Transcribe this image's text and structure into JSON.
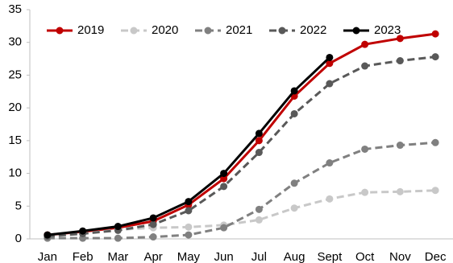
{
  "chart_data": {
    "type": "line",
    "categories": [
      "Jan",
      "Feb",
      "Mar",
      "Apr",
      "May",
      "Jun",
      "Jul",
      "Aug",
      "Sept",
      "Oct",
      "Nov",
      "Dec"
    ],
    "series": [
      {
        "name": "2019",
        "color": "#c00000",
        "dash": false,
        "values": [
          0.6,
          1.1,
          1.7,
          2.7,
          5.2,
          9.2,
          15.0,
          21.8,
          26.8,
          29.7,
          30.6,
          31.3
        ]
      },
      {
        "name": "2020",
        "color": "#c8c8c8",
        "dash": true,
        "values": [
          0.3,
          0.8,
          1.4,
          1.7,
          1.8,
          2.1,
          2.9,
          4.7,
          6.1,
          7.1,
          7.2,
          7.4
        ]
      },
      {
        "name": "2021",
        "color": "#808080",
        "dash": true,
        "values": [
          0.1,
          0.1,
          0.1,
          0.3,
          0.6,
          1.7,
          4.5,
          8.5,
          11.6,
          13.7,
          14.3,
          14.7
        ]
      },
      {
        "name": "2022",
        "color": "#595959",
        "dash": true,
        "values": [
          0.4,
          0.8,
          1.3,
          2.2,
          4.3,
          8.0,
          13.2,
          19.1,
          23.7,
          26.4,
          27.2,
          27.8
        ]
      },
      {
        "name": "2023",
        "color": "#000000",
        "dash": false,
        "values": [
          0.6,
          1.2,
          1.9,
          3.2,
          5.7,
          10.0,
          16.1,
          22.6,
          27.7,
          null,
          null,
          null
        ]
      }
    ],
    "ylim": [
      0,
      35
    ],
    "yticks": [
      0,
      5,
      10,
      15,
      20,
      25,
      30,
      35
    ],
    "grid": false,
    "legend": "top-left"
  }
}
